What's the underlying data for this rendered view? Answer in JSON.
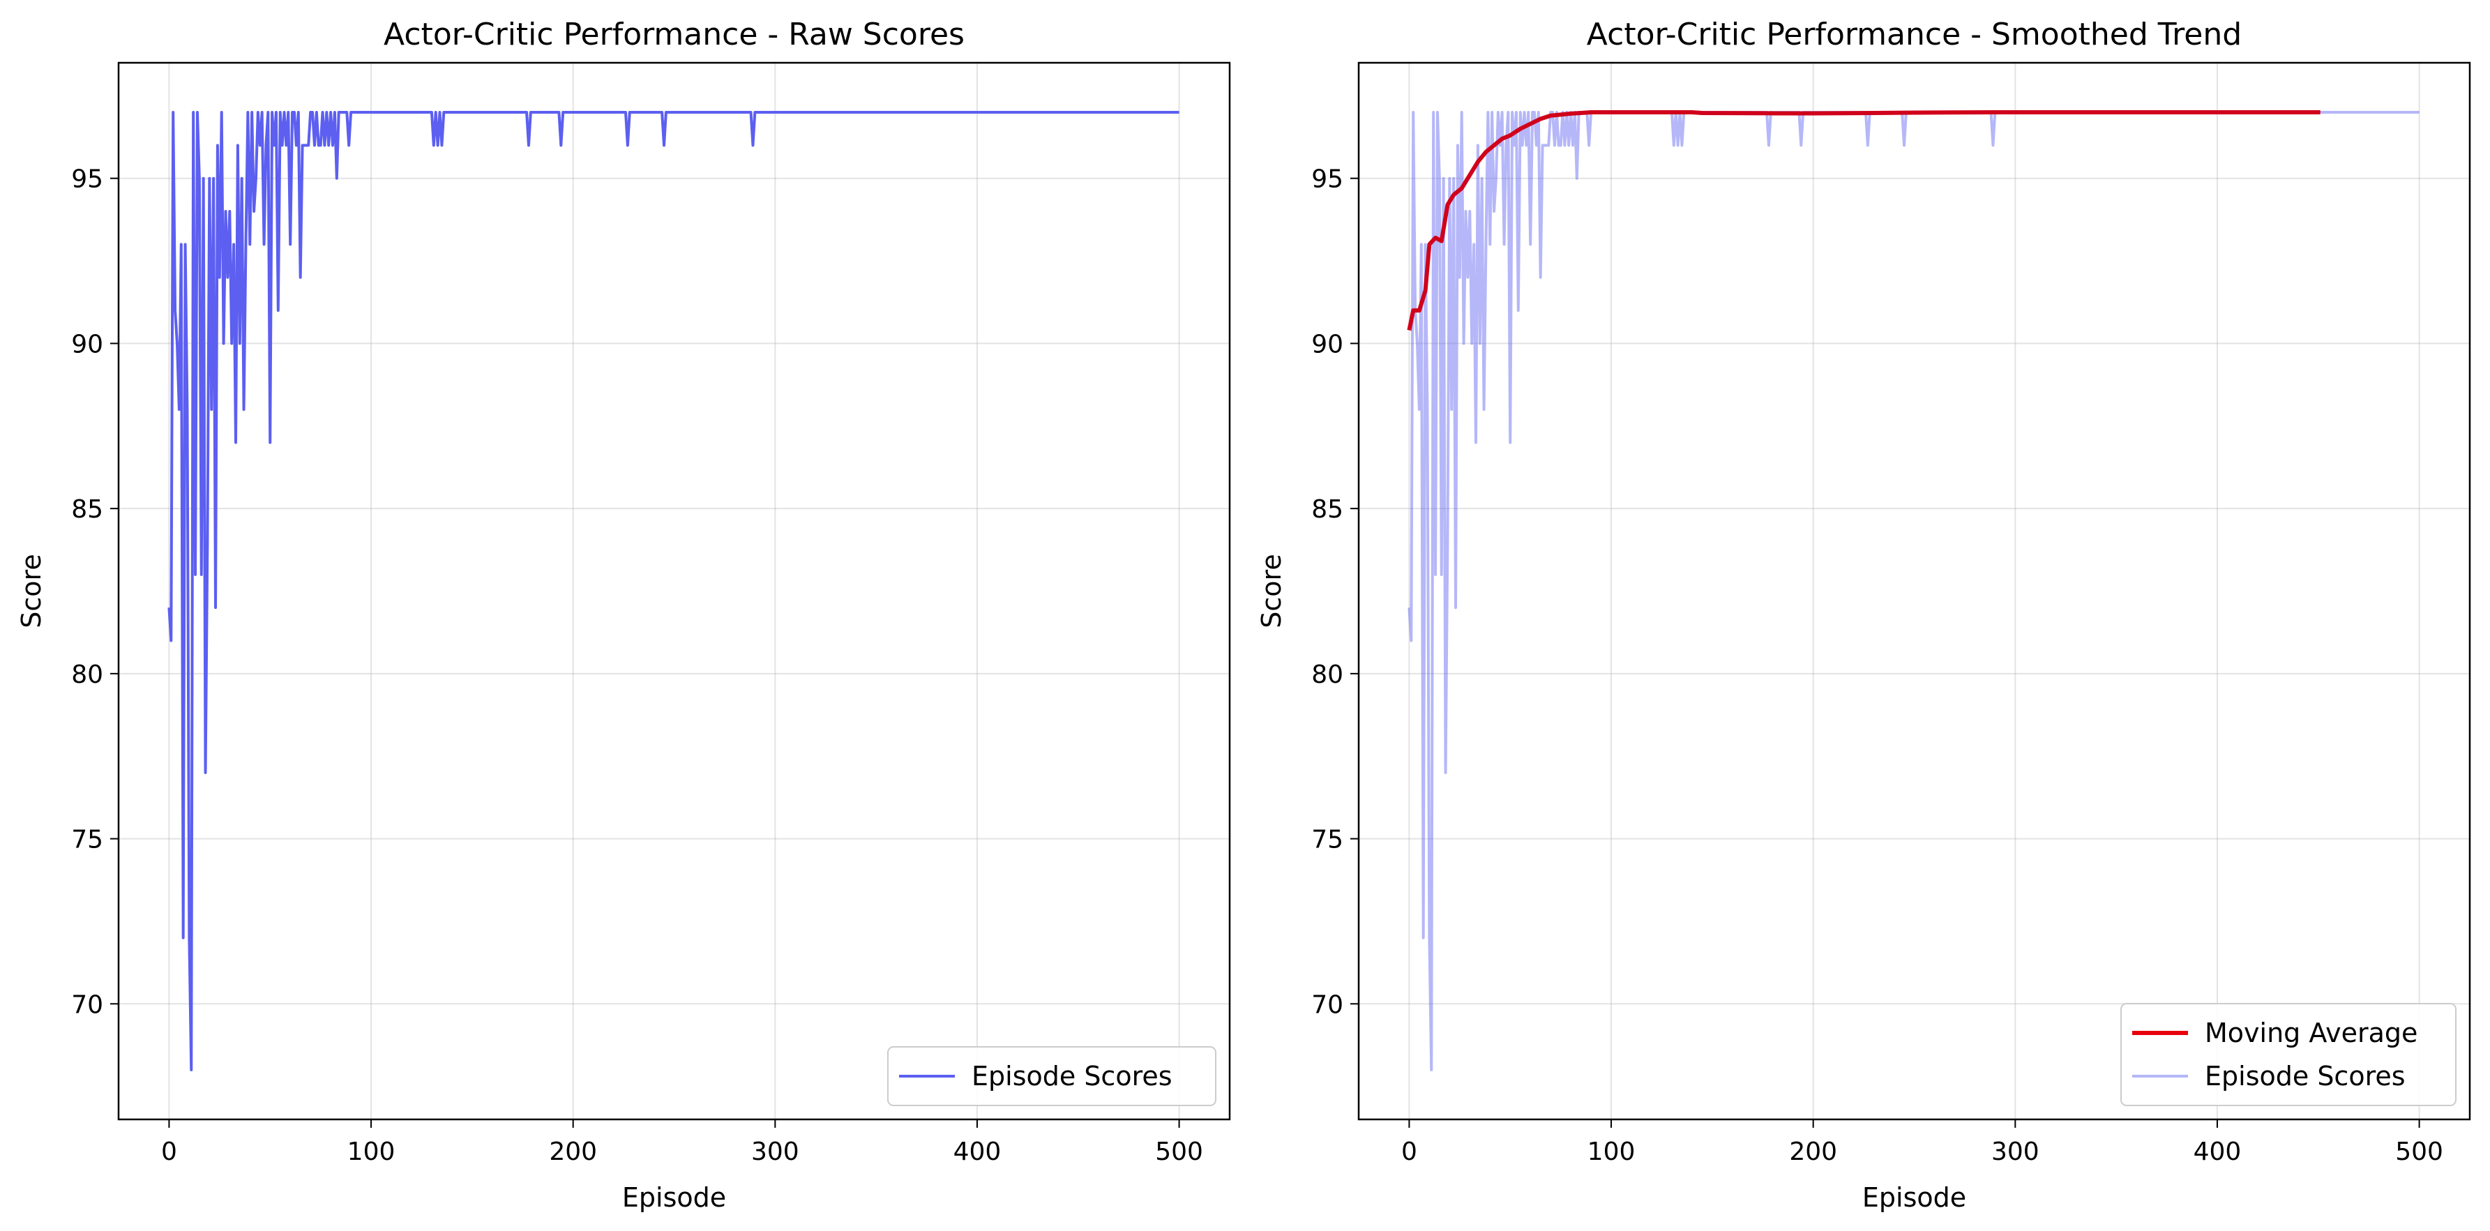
{
  "chart_data": [
    {
      "type": "line",
      "title": "Actor-Critic Performance - Raw Scores",
      "xlabel": "Episode",
      "ylabel": "Score",
      "xlim": [
        -25,
        525
      ],
      "ylim": [
        66.5,
        98.5
      ],
      "xticks": [
        0,
        100,
        200,
        300,
        400,
        500
      ],
      "yticks": [
        70,
        75,
        80,
        85,
        90,
        95
      ],
      "grid": true,
      "legend_position": "lower right",
      "series": [
        {
          "name": "Episode Scores",
          "color": "#5c5ff0",
          "opacity": 1.0,
          "points": [
            [
              0,
              82
            ],
            [
              1,
              81
            ],
            [
              2,
              97
            ],
            [
              3,
              91
            ],
            [
              4,
              90
            ],
            [
              5,
              88
            ],
            [
              6,
              93
            ],
            [
              7,
              72
            ],
            [
              8,
              93
            ],
            [
              9,
              88
            ],
            [
              10,
              72
            ],
            [
              11,
              68
            ],
            [
              12,
              97
            ],
            [
              13,
              83
            ],
            [
              14,
              97
            ],
            [
              15,
              95
            ],
            [
              16,
              83
            ],
            [
              17,
              95
            ],
            [
              18,
              77
            ],
            [
              19,
              84
            ],
            [
              20,
              95
            ],
            [
              21,
              88
            ],
            [
              22,
              95
            ],
            [
              23,
              82
            ],
            [
              24,
              96
            ],
            [
              25,
              92
            ],
            [
              26,
              97
            ],
            [
              27,
              90
            ],
            [
              28,
              94
            ],
            [
              29,
              92
            ],
            [
              30,
              94
            ],
            [
              31,
              90
            ],
            [
              32,
              93
            ],
            [
              33,
              87
            ],
            [
              34,
              96
            ],
            [
              35,
              90
            ],
            [
              36,
              95
            ],
            [
              37,
              88
            ],
            [
              38,
              93
            ],
            [
              39,
              97
            ],
            [
              40,
              93
            ],
            [
              41,
              97
            ],
            [
              42,
              94
            ],
            [
              43,
              95
            ],
            [
              44,
              97
            ],
            [
              45,
              96
            ],
            [
              46,
              97
            ],
            [
              47,
              93
            ],
            [
              48,
              96
            ],
            [
              49,
              97
            ],
            [
              50,
              87
            ],
            [
              51,
              97
            ],
            [
              52,
              96
            ],
            [
              53,
              97
            ],
            [
              54,
              91
            ],
            [
              55,
              97
            ],
            [
              56,
              96
            ],
            [
              57,
              97
            ],
            [
              58,
              96
            ],
            [
              59,
              97
            ],
            [
              60,
              93
            ],
            [
              61,
              97
            ],
            [
              62,
              97
            ],
            [
              63,
              96
            ],
            [
              64,
              97
            ],
            [
              65,
              92
            ],
            [
              66,
              96
            ],
            [
              67,
              96
            ],
            [
              68,
              96
            ],
            [
              69,
              96
            ],
            [
              70,
              97
            ],
            [
              71,
              97
            ],
            [
              72,
              96
            ],
            [
              73,
              97
            ],
            [
              74,
              96
            ],
            [
              75,
              96
            ],
            [
              76,
              97
            ],
            [
              77,
              96
            ],
            [
              78,
              97
            ],
            [
              79,
              96
            ],
            [
              80,
              97
            ],
            [
              81,
              96
            ],
            [
              82,
              97
            ],
            [
              83,
              95
            ],
            [
              84,
              97
            ],
            [
              85,
              97
            ],
            [
              86,
              97
            ],
            [
              87,
              97
            ],
            [
              88,
              97
            ],
            [
              89,
              96
            ],
            [
              90,
              97
            ],
            [
              130,
              97
            ],
            [
              131,
              96
            ],
            [
              132,
              97
            ],
            [
              133,
              96
            ],
            [
              134,
              97
            ],
            [
              135,
              96
            ],
            [
              136,
              97
            ],
            [
              177,
              97
            ],
            [
              178,
              96
            ],
            [
              179,
              97
            ],
            [
              193,
              97
            ],
            [
              194,
              96
            ],
            [
              195,
              97
            ],
            [
              226,
              97
            ],
            [
              227,
              96
            ],
            [
              228,
              97
            ],
            [
              244,
              97
            ],
            [
              245,
              96
            ],
            [
              246,
              97
            ],
            [
              288,
              97
            ],
            [
              289,
              96
            ],
            [
              290,
              97
            ],
            [
              500,
              97
            ]
          ]
        }
      ]
    },
    {
      "type": "line",
      "title": "Actor-Critic Performance - Smoothed Trend",
      "xlabel": "Episode",
      "ylabel": "Score",
      "xlim": [
        -25,
        525
      ],
      "ylim": [
        66.5,
        98.5
      ],
      "xticks": [
        0,
        100,
        200,
        300,
        400,
        500
      ],
      "yticks": [
        70,
        75,
        80,
        85,
        90,
        95
      ],
      "grid": true,
      "legend_position": "lower right",
      "series": [
        {
          "name": "Episode Scores",
          "color": "#5c5ff0",
          "opacity": 0.45,
          "points": "same_as_raw"
        },
        {
          "name": "Moving Average",
          "color": "#d0021b",
          "opacity": 1.0,
          "points": [
            [
              0,
              90.4
            ],
            [
              2,
              91.0
            ],
            [
              5,
              91.0
            ],
            [
              8,
              91.6
            ],
            [
              10,
              93.0
            ],
            [
              13,
              93.2
            ],
            [
              16,
              93.1
            ],
            [
              19,
              94.2
            ],
            [
              22,
              94.5
            ],
            [
              26,
              94.7
            ],
            [
              30,
              95.1
            ],
            [
              34,
              95.5
            ],
            [
              38,
              95.8
            ],
            [
              42,
              96.0
            ],
            [
              46,
              96.2
            ],
            [
              50,
              96.3
            ],
            [
              55,
              96.5
            ],
            [
              60,
              96.65
            ],
            [
              65,
              96.8
            ],
            [
              70,
              96.9
            ],
            [
              75,
              96.93
            ],
            [
              80,
              96.96
            ],
            [
              85,
              96.98
            ],
            [
              90,
              97.0
            ],
            [
              140,
              97.0
            ],
            [
              145,
              96.98
            ],
            [
              180,
              96.97
            ],
            [
              200,
              96.97
            ],
            [
              230,
              96.98
            ],
            [
              250,
              96.99
            ],
            [
              290,
              97.0
            ],
            [
              300,
              97.0
            ],
            [
              451,
              97.0
            ]
          ]
        }
      ]
    }
  ]
}
